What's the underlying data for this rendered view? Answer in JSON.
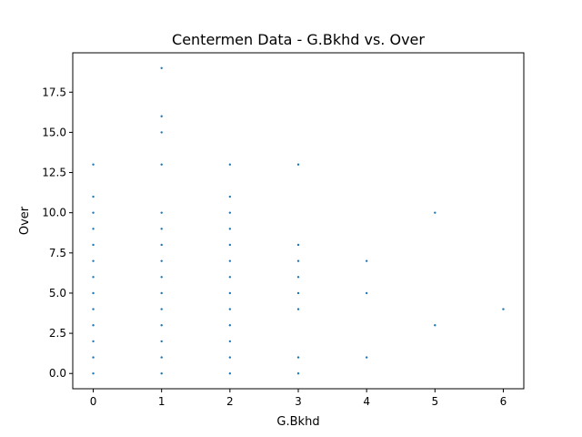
{
  "chart_data": {
    "type": "scatter",
    "title": "Centermen Data - G.Bkhd vs. Over",
    "xlabel": "G.Bkhd",
    "ylabel": "Over",
    "xlim": [
      -0.3,
      6.3
    ],
    "ylim": [
      -0.95,
      19.95
    ],
    "xticks": [
      0,
      1,
      2,
      3,
      4,
      5,
      6
    ],
    "yticks": [
      0.0,
      2.5,
      5.0,
      7.5,
      10.0,
      12.5,
      15.0,
      17.5
    ],
    "ytick_labels": [
      "0.0",
      "2.5",
      "5.0",
      "7.5",
      "10.0",
      "12.5",
      "15.0",
      "17.5"
    ],
    "grid": false,
    "marker_color": "#1f77b4",
    "points": [
      [
        0,
        0
      ],
      [
        0,
        1
      ],
      [
        0,
        2
      ],
      [
        0,
        3
      ],
      [
        0,
        4
      ],
      [
        0,
        5
      ],
      [
        0,
        6
      ],
      [
        0,
        7
      ],
      [
        0,
        8
      ],
      [
        0,
        9
      ],
      [
        0,
        10
      ],
      [
        0,
        11
      ],
      [
        0,
        13
      ],
      [
        1,
        0
      ],
      [
        1,
        1
      ],
      [
        1,
        2
      ],
      [
        1,
        3
      ],
      [
        1,
        4
      ],
      [
        1,
        5
      ],
      [
        1,
        6
      ],
      [
        1,
        7
      ],
      [
        1,
        8
      ],
      [
        1,
        9
      ],
      [
        1,
        10
      ],
      [
        1,
        13
      ],
      [
        1,
        15
      ],
      [
        1,
        16
      ],
      [
        1,
        19
      ],
      [
        2,
        0
      ],
      [
        2,
        1
      ],
      [
        2,
        2
      ],
      [
        2,
        3
      ],
      [
        2,
        4
      ],
      [
        2,
        5
      ],
      [
        2,
        6
      ],
      [
        2,
        7
      ],
      [
        2,
        8
      ],
      [
        2,
        9
      ],
      [
        2,
        10
      ],
      [
        2,
        11
      ],
      [
        2,
        13
      ],
      [
        3,
        0
      ],
      [
        3,
        1
      ],
      [
        3,
        4
      ],
      [
        3,
        5
      ],
      [
        3,
        6
      ],
      [
        3,
        7
      ],
      [
        3,
        8
      ],
      [
        3,
        13
      ],
      [
        4,
        1
      ],
      [
        4,
        5
      ],
      [
        4,
        7
      ],
      [
        5,
        3
      ],
      [
        5,
        10
      ],
      [
        6,
        4
      ]
    ]
  }
}
